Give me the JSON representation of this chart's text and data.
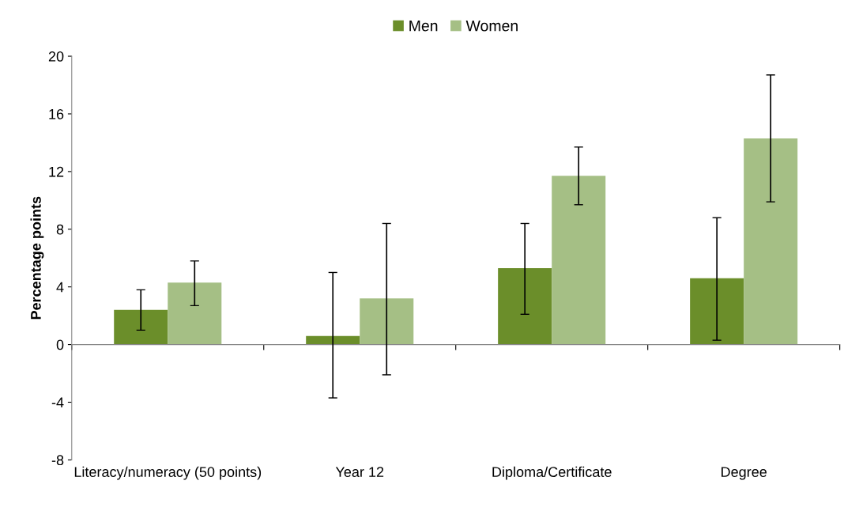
{
  "chart_data": {
    "type": "bar",
    "ylabel": "Percentage points",
    "categories": [
      "Literacy/numeracy (50 points)",
      "Year 12",
      "Diploma/Certificate",
      "Degree"
    ],
    "series": [
      {
        "name": "Men",
        "color": "#6b8e2a",
        "values": [
          2.4,
          0.6,
          5.3,
          4.6
        ],
        "errors": [
          [
            1.0,
            3.8
          ],
          [
            -3.7,
            5.0
          ],
          [
            2.1,
            8.4
          ],
          [
            0.3,
            8.8
          ]
        ]
      },
      {
        "name": "Women",
        "color": "#a5bf85",
        "values": [
          4.3,
          3.2,
          11.7,
          14.3
        ],
        "errors": [
          [
            2.7,
            5.8
          ],
          [
            -2.1,
            8.4
          ],
          [
            9.7,
            13.7
          ],
          [
            9.9,
            18.7
          ]
        ]
      }
    ],
    "ylim": [
      -8,
      20
    ],
    "yticks": [
      -8,
      -4,
      0,
      4,
      8,
      12,
      16,
      20
    ],
    "legend": "top"
  }
}
